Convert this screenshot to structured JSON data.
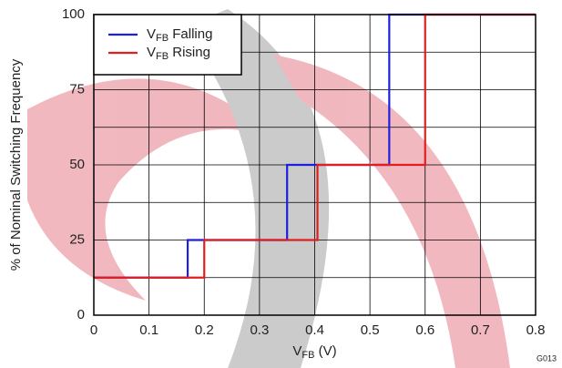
{
  "chart_data": {
    "type": "line",
    "xlabel": "VFB (V)",
    "ylabel": "% of Nominal Switching Frequency",
    "figure_id": "G013",
    "xlim": [
      0,
      0.8
    ],
    "xticks": [
      0,
      0.1,
      0.2,
      0.3,
      0.4,
      0.5,
      0.6,
      0.7,
      0.8
    ],
    "ylim": [
      0,
      100
    ],
    "yticks": [
      0,
      25,
      50,
      75,
      100
    ],
    "ygrid_minor": [
      12.5,
      37.5,
      62.5,
      87.5
    ],
    "grid": true,
    "legend": "upper-left",
    "series": [
      {
        "name": "VFB Falling",
        "color": "#1f1fe0",
        "x": [
          0,
          0.17,
          0.17,
          0.35,
          0.35,
          0.535,
          0.535,
          0.8
        ],
        "values": [
          12.5,
          12.5,
          25,
          25,
          50,
          50,
          100,
          100
        ]
      },
      {
        "name": "VFB Rising",
        "color": "#e01f1f",
        "x": [
          0,
          0.2,
          0.2,
          0.405,
          0.405,
          0.6,
          0.6,
          0.8
        ],
        "values": [
          12.5,
          12.5,
          25,
          25,
          50,
          50,
          100,
          100
        ]
      }
    ]
  }
}
